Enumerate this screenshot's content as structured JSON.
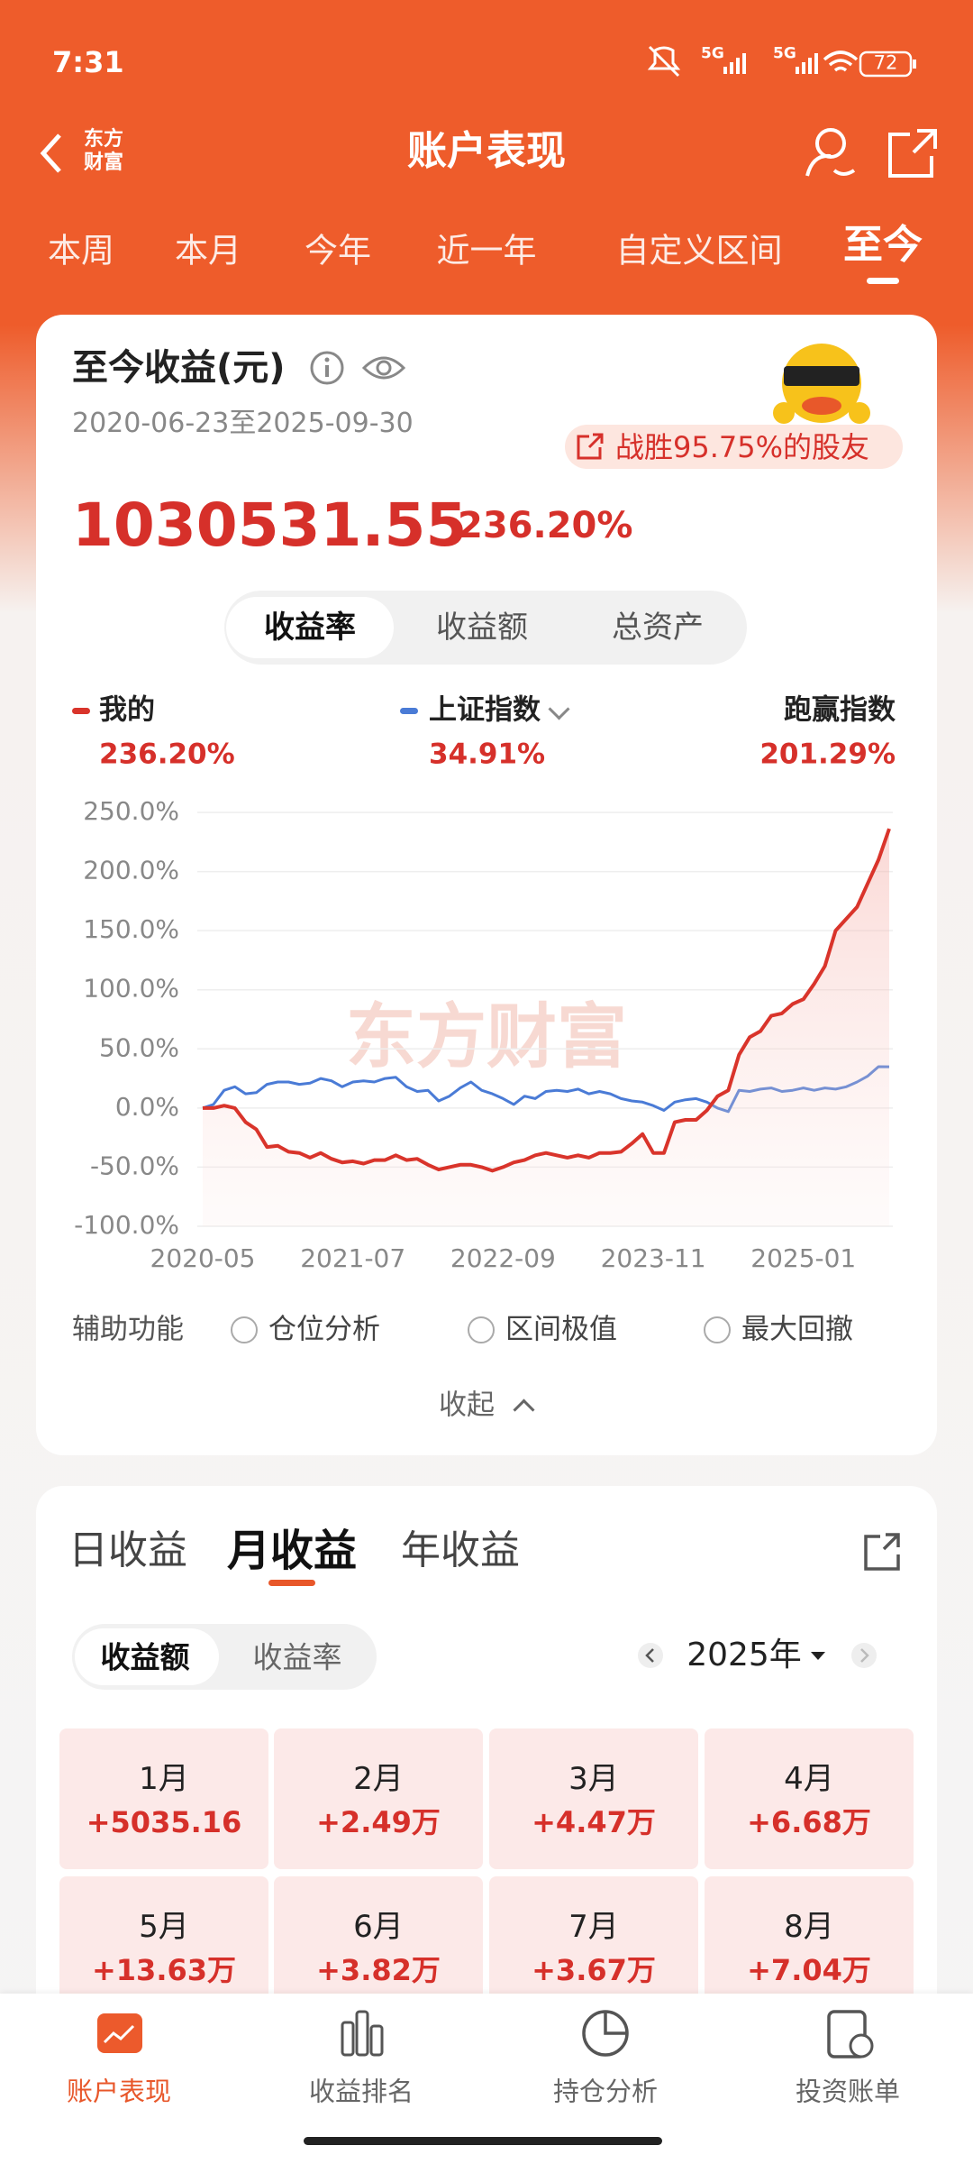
{
  "status_bar": {
    "time": "7:31",
    "signal_labels": [
      "5G",
      "5G"
    ],
    "battery": "72"
  },
  "header": {
    "logo": [
      "东方",
      "财富"
    ],
    "title": "账户表现"
  },
  "tabs": {
    "items": [
      "本周",
      "本月",
      "今年",
      "近一年",
      "自定义区间",
      "至今"
    ],
    "active": 5
  },
  "summary": {
    "title": "至今收益(元)",
    "date_range": "2020-06-23至2025-09-30",
    "badge": "战胜95.75%的股友",
    "amount": "1030531.55",
    "rate": "236.20%"
  },
  "segments": {
    "items": [
      "收益率",
      "收益额",
      "总资产"
    ],
    "active": 0
  },
  "legend": [
    {
      "name": "我的",
      "value": "236.20%"
    },
    {
      "name": "上证指数",
      "value": "34.91%"
    },
    {
      "name": "跑赢指数",
      "value": "201.29%"
    }
  ],
  "chart_data": {
    "type": "line",
    "watermark": "东方财富",
    "x": [
      "2020-05",
      "2020-06",
      "2020-07",
      "2020-08",
      "2020-09",
      "2020-10",
      "2020-11",
      "2020-12",
      "2021-01",
      "2021-02",
      "2021-03",
      "2021-04",
      "2021-05",
      "2021-06",
      "2021-07",
      "2021-08",
      "2021-09",
      "2021-10",
      "2021-11",
      "2021-12",
      "2022-01",
      "2022-02",
      "2022-03",
      "2022-04",
      "2022-05",
      "2022-06",
      "2022-07",
      "2022-08",
      "2022-09",
      "2022-10",
      "2022-11",
      "2022-12",
      "2023-01",
      "2023-02",
      "2023-03",
      "2023-04",
      "2023-05",
      "2023-06",
      "2023-07",
      "2023-08",
      "2023-09",
      "2023-10",
      "2023-11",
      "2023-12",
      "2024-01",
      "2024-02",
      "2024-03",
      "2024-04",
      "2024-05",
      "2024-06",
      "2024-07",
      "2024-08",
      "2024-09",
      "2024-10",
      "2024-11",
      "2024-12",
      "2025-01",
      "2025-02",
      "2025-03",
      "2025-04",
      "2025-05",
      "2025-06",
      "2025-07",
      "2025-08",
      "2025-09"
    ],
    "series": [
      {
        "name": "我的",
        "color": "#d9342b",
        "values": [
          0,
          0,
          2,
          0,
          -12,
          -18,
          -33,
          -32,
          -37,
          -38,
          -42,
          -38,
          -43,
          -46,
          -45,
          -47,
          -44,
          -44,
          -40,
          -44,
          -43,
          -48,
          -52,
          -50,
          -48,
          -48,
          -50,
          -53,
          -50,
          -46,
          -44,
          -40,
          -38,
          -40,
          -42,
          -40,
          -42,
          -38,
          -38,
          -37,
          -30,
          -22,
          -38,
          -38,
          -12,
          -10,
          -10,
          -2,
          10,
          15,
          45,
          60,
          65,
          78,
          80,
          88,
          92,
          105,
          120,
          150,
          160,
          170,
          190,
          210,
          236.2
        ]
      },
      {
        "name": "上证指数",
        "color": "#4a7bd6",
        "values": [
          0,
          3,
          15,
          18,
          12,
          13,
          20,
          22,
          22,
          20,
          21,
          25,
          23,
          18,
          22,
          23,
          22,
          25,
          26,
          18,
          14,
          15,
          6,
          10,
          17,
          22,
          15,
          12,
          8,
          3,
          10,
          8,
          14,
          15,
          14,
          16,
          12,
          14,
          12,
          8,
          6,
          5,
          2,
          -2,
          5,
          7,
          8,
          5,
          0,
          -3,
          15,
          14,
          16,
          17,
          14,
          15,
          17,
          15,
          17,
          16,
          18,
          22,
          27,
          35,
          34.91
        ]
      }
    ],
    "ylim": [
      -100,
      250
    ],
    "yticks": [
      {
        "value": -100,
        "label": "-100.0%"
      },
      {
        "value": -50,
        "label": "-50.0%"
      },
      {
        "value": 0,
        "label": "0.0%"
      },
      {
        "value": 50,
        "label": "50.0%"
      },
      {
        "value": 100,
        "label": "100.0%"
      },
      {
        "value": 150,
        "label": "150.0%"
      },
      {
        "value": 200,
        "label": "200.0%"
      },
      {
        "value": 250,
        "label": "250.0%"
      }
    ],
    "xticks": [
      "2020-05",
      "2021-07",
      "2022-09",
      "2023-11",
      "2025-01"
    ],
    "grid": true
  },
  "tools": {
    "title": "辅助功能",
    "options": [
      "仓位分析",
      "区间极值",
      "最大回撤"
    ],
    "collapse": "收起"
  },
  "monthly": {
    "tabs": [
      "日收益",
      "月收益",
      "年收益"
    ],
    "active_tab": 1,
    "toggle": [
      "收益额",
      "收益率"
    ],
    "active_toggle": 0,
    "year": "2025年",
    "months": [
      {
        "label": "1月",
        "value": "+5035.16"
      },
      {
        "label": "2月",
        "value": "+2.49万"
      },
      {
        "label": "3月",
        "value": "+4.47万"
      },
      {
        "label": "4月",
        "value": "+6.68万"
      },
      {
        "label": "5月",
        "value": "+13.63万"
      },
      {
        "label": "6月",
        "value": "+3.82万"
      },
      {
        "label": "7月",
        "value": "+3.67万"
      },
      {
        "label": "8月",
        "value": "+7.04万"
      }
    ]
  },
  "bottom_nav": {
    "items": [
      "账户表现",
      "收益排名",
      "持仓分析",
      "投资账单"
    ],
    "active": 0
  }
}
